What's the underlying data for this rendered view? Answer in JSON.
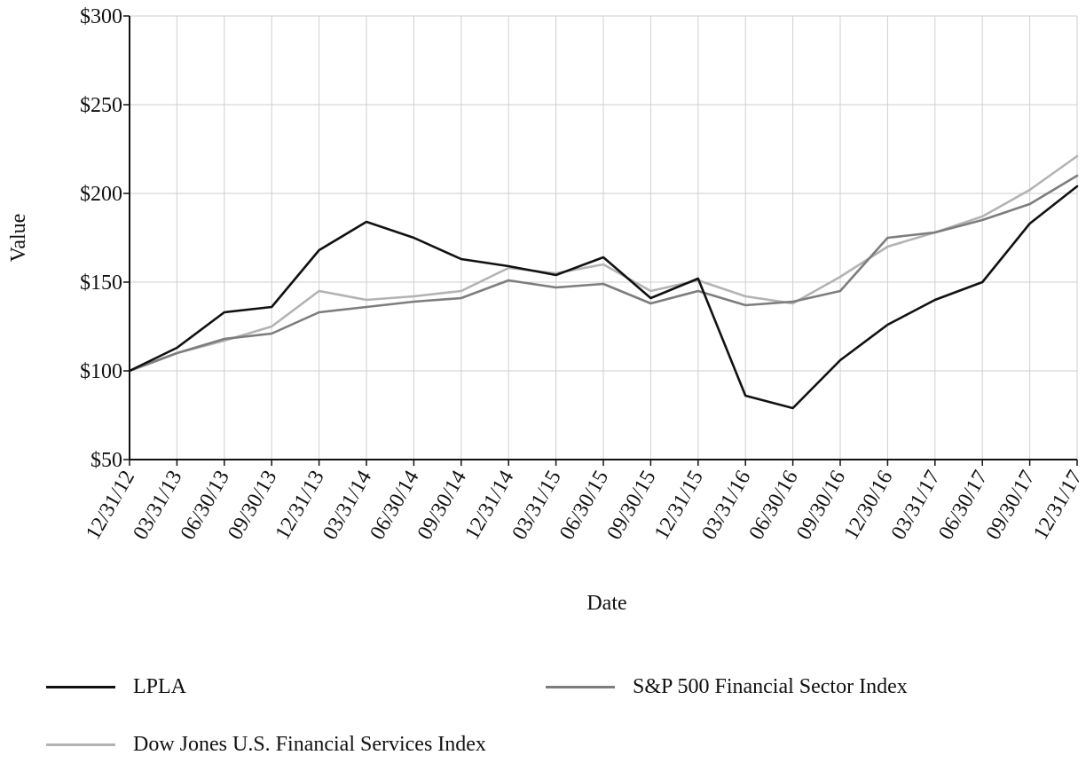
{
  "chart_data": {
    "type": "line",
    "xlabel": "Date",
    "ylabel": "Value",
    "ylim": [
      50,
      300
    ],
    "yticks": [
      50,
      100,
      150,
      200,
      250,
      300
    ],
    "ytick_labels": [
      "$50",
      "$100",
      "$150",
      "$200",
      "$250",
      "$300"
    ],
    "grid": true,
    "legend_position": "bottom",
    "categories": [
      "12/31/12",
      "03/31/13",
      "06/30/13",
      "09/30/13",
      "12/31/13",
      "03/31/14",
      "06/30/14",
      "09/30/14",
      "12/31/14",
      "03/31/15",
      "06/30/15",
      "09/30/15",
      "12/31/15",
      "03/31/16",
      "06/30/16",
      "09/30/16",
      "12/30/16",
      "03/31/17",
      "06/30/17",
      "09/30/17",
      "12/31/17"
    ],
    "series": [
      {
        "name": "LPLA",
        "color": "#111111",
        "values": [
          100,
          113,
          133,
          136,
          168,
          184,
          175,
          163,
          159,
          154,
          164,
          141,
          152,
          86,
          79,
          106,
          126,
          140,
          150,
          183,
          204
        ]
      },
      {
        "name": "S&P 500 Financial Sector Index",
        "color": "#7d7d7d",
        "values": [
          100,
          110,
          118,
          121,
          133,
          136,
          139,
          141,
          151,
          147,
          149,
          138,
          145,
          137,
          139,
          145,
          175,
          178,
          185,
          194,
          210
        ]
      },
      {
        "name": "Dow Jones U.S. Financial Services Index",
        "color": "#b3b3b3",
        "values": [
          100,
          110,
          117,
          125,
          145,
          140,
          142,
          145,
          158,
          155,
          160,
          145,
          151,
          142,
          138,
          153,
          170,
          178,
          187,
          202,
          221
        ]
      }
    ]
  }
}
